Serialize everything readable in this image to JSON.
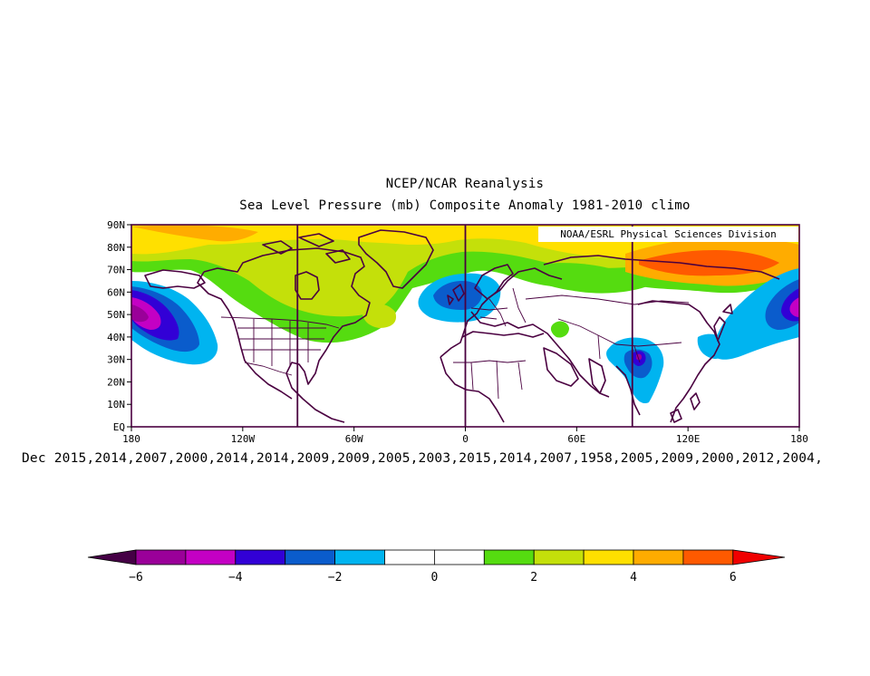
{
  "title": {
    "line1": "NCEP/NCAR Reanalysis",
    "line2": "Sea Level Pressure (mb) Composite Anomaly 1981-2010 climo"
  },
  "credit": "NOAA/ESRL Physical Sciences Division",
  "caption": "Dec 2015,2014,2007,2000,2014,2014,2009,2009,2005,2003,2015,2014,2007,1958,2005,2009,2000,2012,2004,",
  "map": {
    "projection": "cylindrical-equidistant",
    "lon_range": [
      -180,
      180
    ],
    "lat_range": [
      0,
      90
    ],
    "lat_ticks": [
      "EQ",
      "10N",
      "20N",
      "30N",
      "40N",
      "50N",
      "60N",
      "70N",
      "80N",
      "90N"
    ],
    "lon_ticks": [
      "180",
      "120W",
      "60W",
      "0",
      "60E",
      "120E",
      "180"
    ],
    "meridian_lines_lon": [
      -90,
      0,
      90
    ],
    "anomaly_regions": [
      {
        "name": "arctic-high",
        "value": 3,
        "lon": [
          -180,
          180
        ],
        "lat": [
          70,
          90
        ]
      },
      {
        "name": "siberia-high",
        "value": 5,
        "lon": [
          85,
          180
        ],
        "lat": [
          70,
          82
        ]
      },
      {
        "name": "canada-high",
        "value": 2,
        "lon": [
          -110,
          -30
        ],
        "lat": [
          52,
          80
        ]
      },
      {
        "name": "north-pacific-low",
        "value": -5,
        "lon": [
          -180,
          -145
        ],
        "lat": [
          35,
          65
        ]
      },
      {
        "name": "kamchatka-low",
        "value": -4,
        "lon": [
          140,
          180
        ],
        "lat": [
          30,
          65
        ]
      },
      {
        "name": "north-atlantic-low",
        "value": -3,
        "lon": [
          -25,
          20
        ],
        "lat": [
          52,
          68
        ]
      },
      {
        "name": "tibet-low",
        "value": -5,
        "lon": [
          82,
          105
        ],
        "lat": [
          18,
          38
        ]
      },
      {
        "name": "caspian-high",
        "value": 1,
        "lon": [
          48,
          58
        ],
        "lat": [
          40,
          48
        ]
      }
    ]
  },
  "colorbar": {
    "ticks": [
      "-6",
      "-4",
      "-2",
      "0",
      "2",
      "4",
      "6"
    ],
    "colors": [
      "#9a0099",
      "#c400c4",
      "#3200d6",
      "#0a5ccc",
      "#00b4f0",
      "#ffffff",
      "#ffffff",
      "#55dc10",
      "#c4e00a",
      "#ffe000",
      "#ffac00",
      "#ff5a00",
      "#f00000"
    ],
    "under_color": "#450045",
    "over_color": "#f00000"
  }
}
